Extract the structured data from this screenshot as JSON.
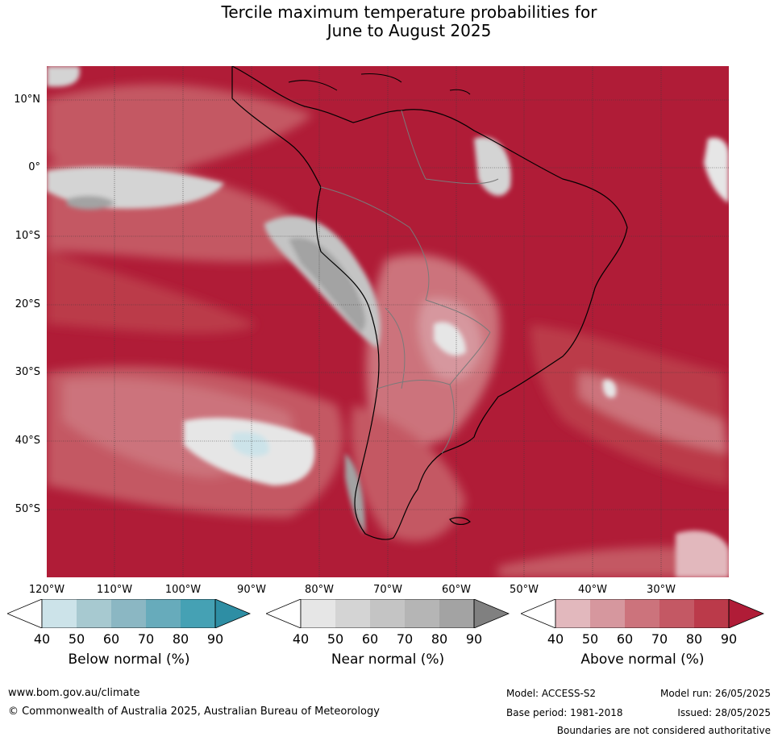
{
  "title_line1": "Tercile maximum temperature probabilities for",
  "title_line2": "June to August 2025",
  "lat_labels": [
    "10°N",
    "0°",
    "10°S",
    "20°S",
    "30°S",
    "40°S",
    "50°S"
  ],
  "lon_labels": [
    "120°W",
    "110°W",
    "100°W",
    "90°W",
    "80°W",
    "70°W",
    "60°W",
    "50°W",
    "40°W",
    "30°W"
  ],
  "colorbars": [
    {
      "title": "Below normal (%)",
      "ticks": [
        "40",
        "50",
        "60",
        "70",
        "80",
        "90"
      ],
      "colors": [
        "#ffffff",
        "#cce3e9",
        "#a7c9d0",
        "#8bb7c3",
        "#67abbb",
        "#45a1b4",
        "#2e8ea4"
      ]
    },
    {
      "title": "Near normal (%)",
      "ticks": [
        "40",
        "50",
        "60",
        "70",
        "80",
        "90"
      ],
      "colors": [
        "#ffffff",
        "#e6e6e6",
        "#d4d4d4",
        "#c4c4c4",
        "#b5b5b5",
        "#a3a3a3",
        "#808080"
      ]
    },
    {
      "title": "Above normal (%)",
      "ticks": [
        "40",
        "50",
        "60",
        "70",
        "80",
        "90"
      ],
      "colors": [
        "#ffffff",
        "#e2b8bd",
        "#d6979e",
        "#cc737c",
        "#c45864",
        "#bb3a4a",
        "#b01c37"
      ]
    }
  ],
  "footer": {
    "website": "www.bom.gov.au/climate",
    "copyright": "© Commonwealth of Australia 2025, Australian Bureau of Meteorology",
    "model": "Model: ACCESS-S2",
    "base_period": "Base period: 1981-2018",
    "model_run": "Model run: 26/05/2025",
    "issued": "Issued: 28/05/2025",
    "disclaimer": "Boundaries are not considered authoritative"
  }
}
